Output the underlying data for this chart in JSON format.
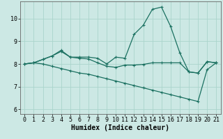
{
  "xlabel": "Humidex (Indice chaleur)",
  "background_color": "#cce8e4",
  "grid_color": "#aad4cc",
  "line_color": "#1a7060",
  "xlim": [
    -0.5,
    21.5
  ],
  "ylim": [
    5.8,
    10.75
  ],
  "yticks": [
    6,
    7,
    8,
    9,
    10
  ],
  "xticks": [
    0,
    1,
    2,
    3,
    4,
    5,
    6,
    7,
    8,
    9,
    10,
    11,
    12,
    13,
    14,
    15,
    16,
    17,
    18,
    19,
    20,
    21
  ],
  "line1_x": [
    0,
    1,
    2,
    3,
    4,
    5,
    6,
    7,
    8,
    9,
    10,
    11,
    12,
    13,
    14,
    15,
    16,
    17,
    18,
    19,
    20,
    21
  ],
  "line1_y": [
    8.0,
    8.05,
    8.2,
    8.35,
    8.6,
    8.3,
    8.3,
    8.3,
    8.25,
    8.0,
    8.3,
    8.25,
    9.3,
    9.7,
    10.4,
    10.5,
    9.65,
    8.5,
    7.65,
    7.6,
    8.1,
    8.05
  ],
  "line2_x": [
    0,
    1,
    2,
    3,
    4,
    5,
    6,
    7,
    8,
    9,
    10,
    11,
    12,
    13,
    14,
    15,
    16,
    17,
    18,
    19,
    20,
    21
  ],
  "line2_y": [
    8.0,
    8.05,
    8.2,
    8.35,
    8.55,
    8.3,
    8.25,
    8.22,
    8.05,
    7.9,
    7.85,
    7.95,
    7.95,
    7.98,
    8.05,
    8.05,
    8.05,
    8.05,
    7.65,
    7.6,
    8.1,
    8.05
  ],
  "line3_x": [
    0,
    1,
    2,
    3,
    4,
    5,
    6,
    7,
    8,
    9,
    10,
    11,
    12,
    13,
    14,
    15,
    16,
    17,
    18,
    19,
    20,
    21
  ],
  "line3_y": [
    8.0,
    8.05,
    8.0,
    7.9,
    7.8,
    7.7,
    7.6,
    7.55,
    7.45,
    7.35,
    7.25,
    7.15,
    7.05,
    6.95,
    6.85,
    6.75,
    6.65,
    6.55,
    6.45,
    6.35,
    7.75,
    8.05
  ],
  "markersize": 3,
  "linewidth": 0.9,
  "tick_fontsize": 6,
  "label_fontsize": 7
}
